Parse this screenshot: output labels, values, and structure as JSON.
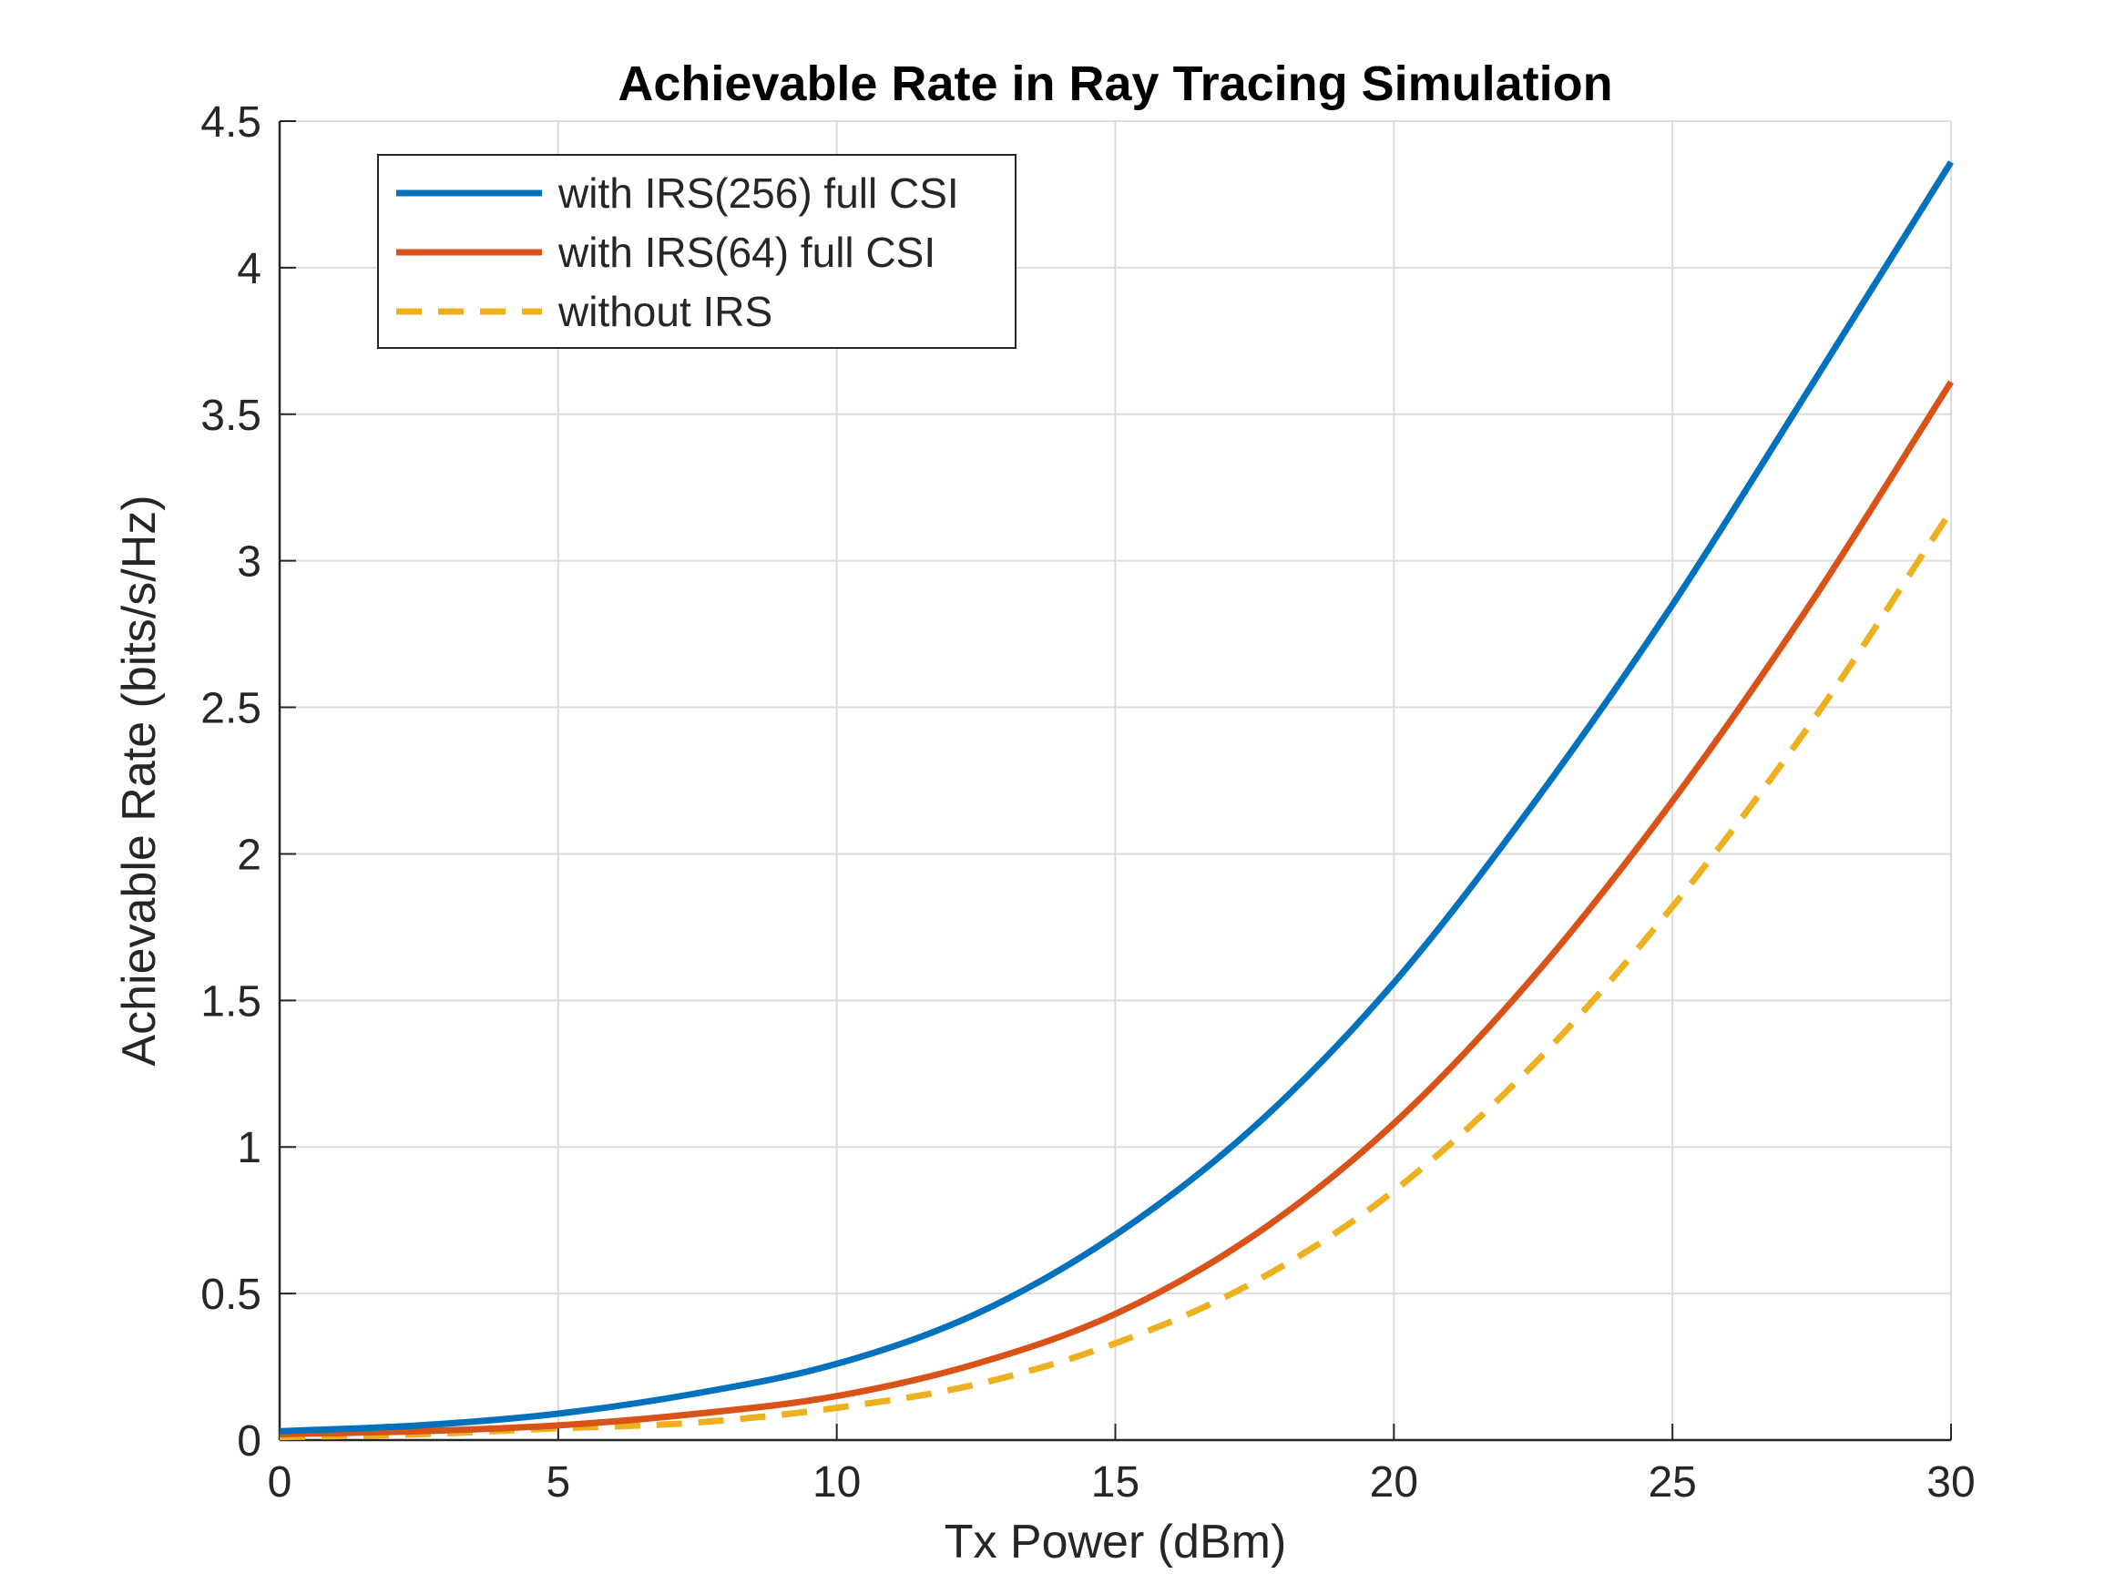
{
  "chart_data": {
    "type": "line",
    "title": "Achievable Rate in Ray Tracing Simulation",
    "xlabel": "Tx Power (dBm)",
    "ylabel": "Achievable Rate (bits/s/Hz)",
    "xlim": [
      0,
      30
    ],
    "ylim": [
      0,
      4.5
    ],
    "xticks": [
      0,
      5,
      10,
      15,
      20,
      25,
      30
    ],
    "xtick_labels": [
      "0",
      "5",
      "10",
      "15",
      "20",
      "25",
      "30"
    ],
    "yticks": [
      0,
      0.5,
      1,
      1.5,
      2,
      2.5,
      3,
      3.5,
      4,
      4.5
    ],
    "ytick_labels": [
      "0",
      "0.5",
      "1",
      "1.5",
      "2",
      "2.5",
      "3",
      "3.5",
      "4",
      "4.5"
    ],
    "grid": true,
    "legend_position": "top-left",
    "x": [
      0,
      2.5,
      5,
      7.5,
      10,
      12.5,
      15,
      17.5,
      20,
      22.5,
      25,
      27.5,
      30
    ],
    "series": [
      {
        "name": "with IRS(256) full CSI",
        "color": "#0072BD",
        "style": "solid",
        "values": [
          0.03,
          0.05,
          0.09,
          0.16,
          0.26,
          0.43,
          0.7,
          1.07,
          1.56,
          2.17,
          2.85,
          3.6,
          4.36
        ]
      },
      {
        "name": "with IRS(64) full CSI",
        "color": "#D95319",
        "style": "solid",
        "values": [
          0.02,
          0.03,
          0.05,
          0.09,
          0.15,
          0.26,
          0.43,
          0.7,
          1.08,
          1.58,
          2.18,
          2.86,
          3.61
        ]
      },
      {
        "name": "without IRS",
        "color": "#EDB120",
        "style": "dashed",
        "values": [
          0.01,
          0.02,
          0.04,
          0.06,
          0.11,
          0.19,
          0.33,
          0.54,
          0.85,
          1.28,
          1.82,
          2.45,
          3.17
        ]
      }
    ]
  }
}
